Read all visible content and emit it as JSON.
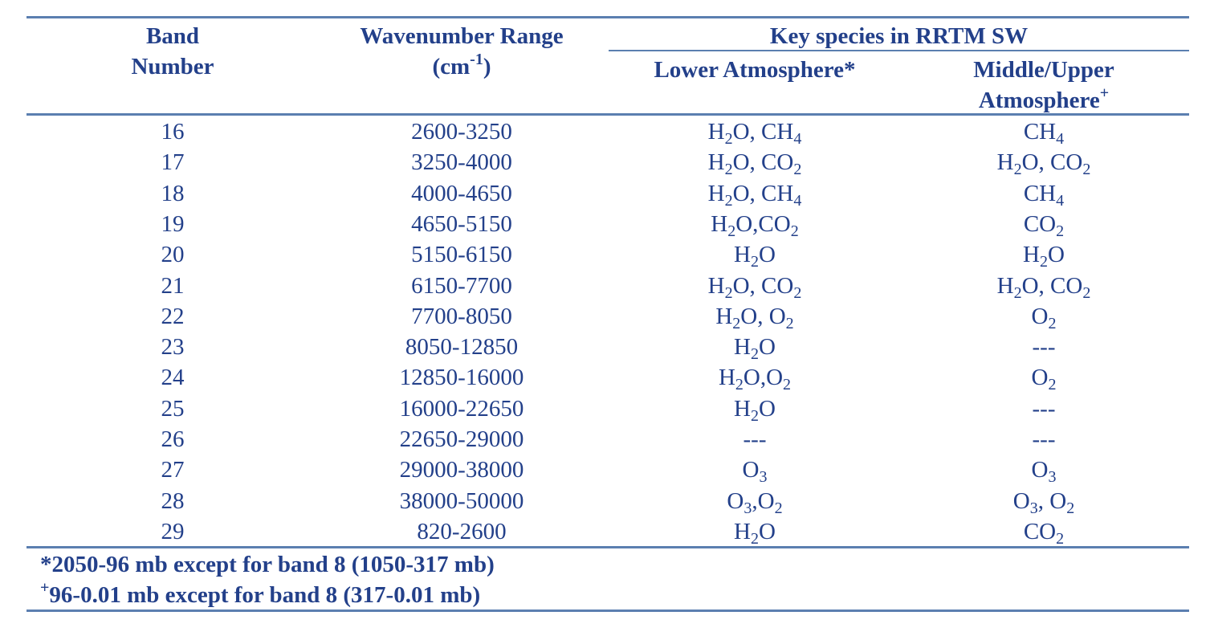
{
  "table": {
    "headers": {
      "band_line1": "Band",
      "band_line2": "Number",
      "wavenumber_line1": "Wavenumber Range",
      "wavenumber_unit_base": "(cm",
      "wavenumber_unit_exp": "-1",
      "wavenumber_unit_close": ")",
      "key_species": "Key species in RRTM SW",
      "lower": "Lower Atmosphere*",
      "middle_line1": "Middle/Upper",
      "middle_line2": "Atmosphere",
      "middle_marker": "+"
    },
    "rows": [
      {
        "band": "16",
        "range": "2600-3250",
        "lower": [
          [
            "H"
          ],
          [
            "2",
            "sub"
          ],
          [
            "O, CH"
          ],
          [
            "4",
            "sub"
          ]
        ],
        "upper": [
          [
            "CH"
          ],
          [
            "4",
            "sub"
          ]
        ]
      },
      {
        "band": "17",
        "range": "3250-4000",
        "lower": [
          [
            "H"
          ],
          [
            "2",
            "sub"
          ],
          [
            "O, CO"
          ],
          [
            "2",
            "sub"
          ]
        ],
        "upper": [
          [
            "H"
          ],
          [
            "2",
            "sub"
          ],
          [
            "O, CO"
          ],
          [
            "2",
            "sub"
          ]
        ]
      },
      {
        "band": "18",
        "range": "4000-4650",
        "lower": [
          [
            "H"
          ],
          [
            "2",
            "sub"
          ],
          [
            "O, CH"
          ],
          [
            "4",
            "sub"
          ]
        ],
        "upper": [
          [
            "CH"
          ],
          [
            "4",
            "sub"
          ]
        ]
      },
      {
        "band": "19",
        "range": "4650-5150",
        "lower": [
          [
            "H"
          ],
          [
            "2",
            "sub"
          ],
          [
            "O,CO"
          ],
          [
            "2",
            "sub"
          ]
        ],
        "upper": [
          [
            "CO"
          ],
          [
            "2",
            "sub"
          ]
        ]
      },
      {
        "band": "20",
        "range": "5150-6150",
        "lower": [
          [
            "H"
          ],
          [
            "2",
            "sub"
          ],
          [
            "O"
          ]
        ],
        "upper": [
          [
            "H"
          ],
          [
            "2",
            "sub"
          ],
          [
            "O"
          ]
        ]
      },
      {
        "band": "21",
        "range": "6150-7700",
        "lower": [
          [
            "H"
          ],
          [
            "2",
            "sub"
          ],
          [
            "O, CO"
          ],
          [
            "2",
            "sub"
          ]
        ],
        "upper": [
          [
            "H"
          ],
          [
            "2",
            "sub"
          ],
          [
            "O, CO"
          ],
          [
            "2",
            "sub"
          ]
        ]
      },
      {
        "band": "22",
        "range": "7700-8050",
        "lower": [
          [
            "H"
          ],
          [
            "2",
            "sub"
          ],
          [
            "O, O"
          ],
          [
            "2",
            "sub"
          ]
        ],
        "upper": [
          [
            "O"
          ],
          [
            "2",
            "sub"
          ]
        ]
      },
      {
        "band": "23",
        "range": "8050-12850",
        "lower": [
          [
            "H"
          ],
          [
            "2",
            "sub"
          ],
          [
            "O"
          ]
        ],
        "upper": [
          [
            "---"
          ]
        ]
      },
      {
        "band": "24",
        "range": "12850-16000",
        "lower": [
          [
            "H"
          ],
          [
            "2",
            "sub"
          ],
          [
            "O,O"
          ],
          [
            "2",
            "sub"
          ]
        ],
        "upper": [
          [
            "O"
          ],
          [
            "2",
            "sub"
          ]
        ]
      },
      {
        "band": "25",
        "range": "16000-22650",
        "lower": [
          [
            "H"
          ],
          [
            "2",
            "sub"
          ],
          [
            "O"
          ]
        ],
        "upper": [
          [
            "---"
          ]
        ]
      },
      {
        "band": "26",
        "range": "22650-29000",
        "lower": [
          [
            "---"
          ]
        ],
        "upper": [
          [
            "---"
          ]
        ]
      },
      {
        "band": "27",
        "range": "29000-38000",
        "lower": [
          [
            "O"
          ],
          [
            "3",
            "sub"
          ]
        ],
        "upper": [
          [
            "O"
          ],
          [
            "3",
            "sub"
          ]
        ]
      },
      {
        "band": "28",
        "range": "38000-50000",
        "lower": [
          [
            "O"
          ],
          [
            "3",
            "sub"
          ],
          [
            ",O"
          ],
          [
            "2",
            "sub"
          ]
        ],
        "upper": [
          [
            "O"
          ],
          [
            "3",
            "sub"
          ],
          [
            ", O"
          ],
          [
            "2",
            "sub"
          ]
        ]
      },
      {
        "band": "29",
        "range": "820-2600",
        "lower": [
          [
            "H"
          ],
          [
            "2",
            "sub"
          ],
          [
            "O"
          ]
        ],
        "upper": [
          [
            "CO"
          ],
          [
            "2",
            "sub"
          ]
        ]
      }
    ]
  },
  "footnotes": {
    "note1": "*2050-96 mb except for band 8 (1050-317 mb)",
    "note2_marker": "+",
    "note2": "96-0.01 mb except for band 8 (317-0.01 mb)"
  },
  "colors": {
    "text": "#23408a",
    "rule": "#5b7fb0"
  }
}
